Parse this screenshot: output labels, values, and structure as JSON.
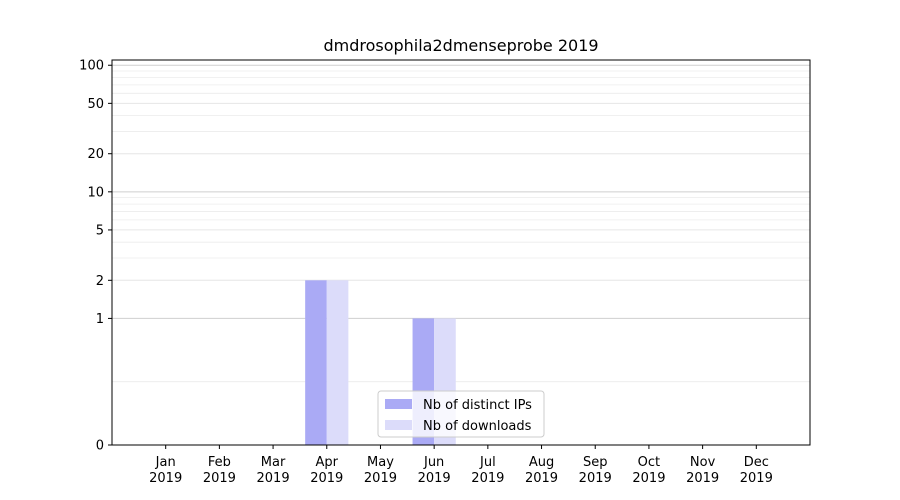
{
  "chart_data": {
    "type": "bar",
    "title": "dmdrosophila2dmenseprobe 2019",
    "xlabel": "",
    "ylabel": "",
    "yscale": "symlog",
    "ylim": [
      0,
      110
    ],
    "yticks": [
      0,
      1,
      2,
      5,
      10,
      20,
      50,
      100
    ],
    "ytick_labels": [
      "0",
      "1",
      "2",
      "5",
      "10",
      "20",
      "50",
      "100"
    ],
    "categories": [
      "Jan\n2019",
      "Feb\n2019",
      "Mar\n2019",
      "Apr\n2019",
      "May\n2019",
      "Jun\n2019",
      "Jul\n2019",
      "Aug\n2019",
      "Sep\n2019",
      "Oct\n2019",
      "Nov\n2019",
      "Dec\n2019"
    ],
    "category_lines": [
      [
        "Jan",
        "2019"
      ],
      [
        "Feb",
        "2019"
      ],
      [
        "Mar",
        "2019"
      ],
      [
        "Apr",
        "2019"
      ],
      [
        "May",
        "2019"
      ],
      [
        "Jun",
        "2019"
      ],
      [
        "Jul",
        "2019"
      ],
      [
        "Aug",
        "2019"
      ],
      [
        "Sep",
        "2019"
      ],
      [
        "Oct",
        "2019"
      ],
      [
        "Nov",
        "2019"
      ],
      [
        "Dec",
        "2019"
      ]
    ],
    "series": [
      {
        "name": "Nb of distinct IPs",
        "color": "#aaaaf5",
        "values": [
          0,
          0,
          0,
          2,
          0,
          1,
          0,
          0,
          0,
          0,
          0,
          0
        ]
      },
      {
        "name": "Nb of downloads",
        "color": "#dcdcfa",
        "values": [
          0,
          0,
          0,
          2,
          0,
          1,
          0,
          0,
          0,
          0,
          0,
          0
        ]
      }
    ],
    "grid": true,
    "legend_position": "bottom-center"
  }
}
